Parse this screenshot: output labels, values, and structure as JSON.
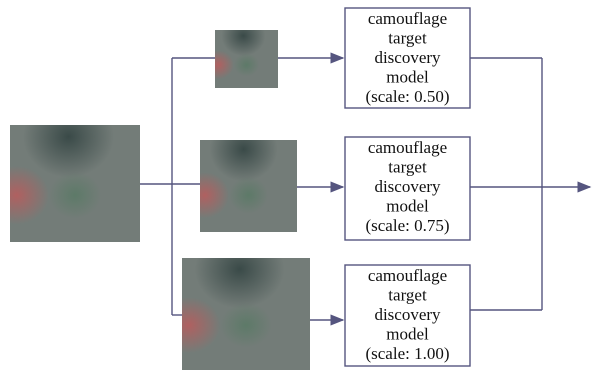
{
  "nodes": [
    {
      "lines": [
        "camouflage",
        "target",
        "discovery",
        "model",
        "(scale: 0.50)"
      ]
    },
    {
      "lines": [
        "camouflage",
        "target",
        "discovery",
        "model",
        "(scale: 0.75)"
      ]
    },
    {
      "lines": [
        "camouflage",
        "target",
        "discovery",
        "model",
        "(scale: 1.00)"
      ]
    }
  ]
}
